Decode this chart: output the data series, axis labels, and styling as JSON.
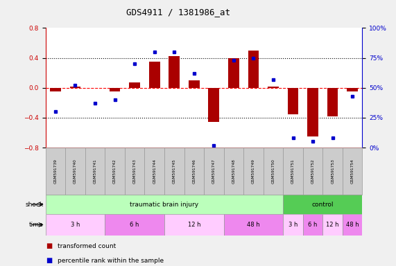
{
  "title": "GDS4911 / 1381986_at",
  "samples": [
    "GSM591739",
    "GSM591740",
    "GSM591741",
    "GSM591742",
    "GSM591743",
    "GSM591744",
    "GSM591745",
    "GSM591746",
    "GSM591747",
    "GSM591748",
    "GSM591749",
    "GSM591750",
    "GSM591751",
    "GSM591752",
    "GSM591753",
    "GSM591754"
  ],
  "red_values": [
    -0.05,
    0.02,
    0.0,
    -0.05,
    0.07,
    0.35,
    0.42,
    0.1,
    -0.46,
    0.4,
    0.5,
    0.02,
    -0.35,
    -0.65,
    -0.38,
    -0.05
  ],
  "blue_values": [
    30,
    52,
    37,
    40,
    70,
    80,
    80,
    62,
    2,
    73,
    75,
    57,
    8,
    5,
    8,
    43
  ],
  "ylim_left": [
    -0.8,
    0.8
  ],
  "ylim_right": [
    0,
    100
  ],
  "yticks_left": [
    -0.8,
    -0.4,
    0.0,
    0.4,
    0.8
  ],
  "yticks_right": [
    0,
    25,
    50,
    75,
    100
  ],
  "ytick_labels_right": [
    "0%",
    "25%",
    "50%",
    "75%",
    "100%"
  ],
  "shock_groups": [
    {
      "label": "traumatic brain injury",
      "start": 0,
      "end": 11,
      "color": "#bbffbb"
    },
    {
      "label": "control",
      "start": 12,
      "end": 15,
      "color": "#55cc55"
    }
  ],
  "time_groups": [
    {
      "label": "3 h",
      "start": 0,
      "end": 2,
      "color": "#ffccff"
    },
    {
      "label": "6 h",
      "start": 3,
      "end": 5,
      "color": "#ee88ee"
    },
    {
      "label": "12 h",
      "start": 6,
      "end": 8,
      "color": "#ffccff"
    },
    {
      "label": "48 h",
      "start": 9,
      "end": 11,
      "color": "#ee88ee"
    },
    {
      "label": "3 h",
      "start": 12,
      "end": 12,
      "color": "#ffccff"
    },
    {
      "label": "6 h",
      "start": 13,
      "end": 13,
      "color": "#ee88ee"
    },
    {
      "label": "12 h",
      "start": 14,
      "end": 14,
      "color": "#ffccff"
    },
    {
      "label": "48 h",
      "start": 15,
      "end": 15,
      "color": "#ee88ee"
    }
  ],
  "bar_color": "#aa0000",
  "dot_color": "#0000cc",
  "left_label_color": "#cc0000",
  "right_label_color": "#0000cc",
  "cell_color": "#cccccc",
  "cell_edge_color": "#999999",
  "fig_bg": "#f0f0f0"
}
